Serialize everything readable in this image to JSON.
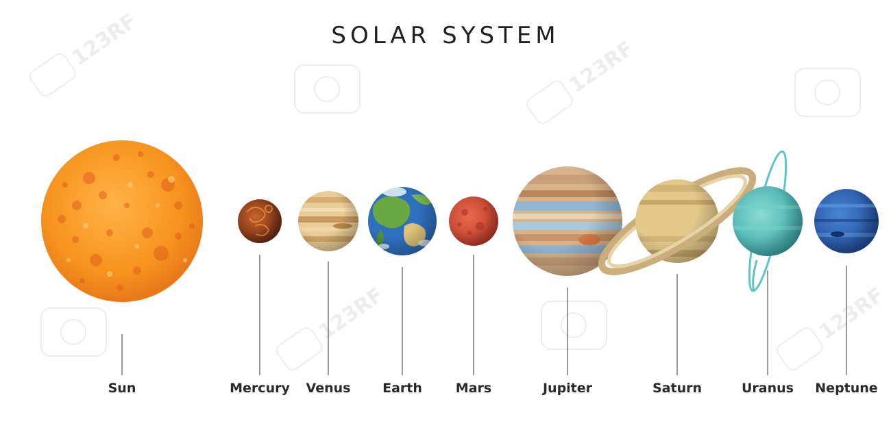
{
  "title": "SOLAR SYSTEM",
  "watermark": {
    "text": "123RF"
  },
  "bodies": [
    {
      "id": "sun",
      "label": "Sun",
      "color": "#f7931e"
    },
    {
      "id": "mercury",
      "label": "Mercury",
      "color": "#8a3a1c"
    },
    {
      "id": "venus",
      "label": "Venus",
      "color": "#e3c08a"
    },
    {
      "id": "earth",
      "label": "Earth",
      "color": "#3a7bbf"
    },
    {
      "id": "mars",
      "label": "Mars",
      "color": "#d8503a"
    },
    {
      "id": "jupiter",
      "label": "Jupiter",
      "color": "#d9b48a"
    },
    {
      "id": "saturn",
      "label": "Saturn",
      "color": "#e4c98b"
    },
    {
      "id": "uranus",
      "label": "Uranus",
      "color": "#5ec5c0"
    },
    {
      "id": "neptune",
      "label": "Neptune",
      "color": "#2d62b8"
    }
  ]
}
